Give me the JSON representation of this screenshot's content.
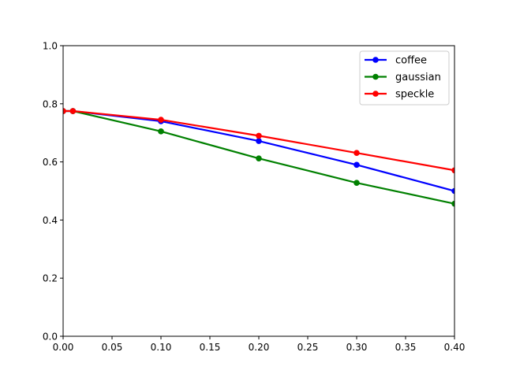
{
  "chart_data": {
    "type": "line",
    "title": "",
    "xlabel": "",
    "ylabel": "",
    "xlim": [
      0.0,
      0.4
    ],
    "ylim": [
      0.0,
      1.0
    ],
    "x_ticks": [
      "0.00",
      "0.05",
      "0.10",
      "0.15",
      "0.20",
      "0.25",
      "0.30",
      "0.35",
      "0.40"
    ],
    "y_ticks": [
      "0.0",
      "0.2",
      "0.4",
      "0.6",
      "0.8",
      "1.0"
    ],
    "grid": false,
    "legend_position": "top-right",
    "series": [
      {
        "name": "coffee",
        "color": "#0000ff",
        "x": [
          0.0,
          0.01,
          0.1,
          0.2,
          0.3,
          0.4
        ],
        "y": [
          0.775,
          0.775,
          0.74,
          0.672,
          0.59,
          0.5
        ]
      },
      {
        "name": "gaussian",
        "color": "#008000",
        "x": [
          0.0,
          0.01,
          0.1,
          0.2,
          0.3,
          0.4
        ],
        "y": [
          0.775,
          0.775,
          0.705,
          0.612,
          0.528,
          0.456
        ]
      },
      {
        "name": "speckle",
        "color": "#ff0000",
        "x": [
          0.0,
          0.01,
          0.1,
          0.2,
          0.3,
          0.4
        ],
        "y": [
          0.775,
          0.775,
          0.745,
          0.69,
          0.631,
          0.571
        ]
      }
    ]
  }
}
